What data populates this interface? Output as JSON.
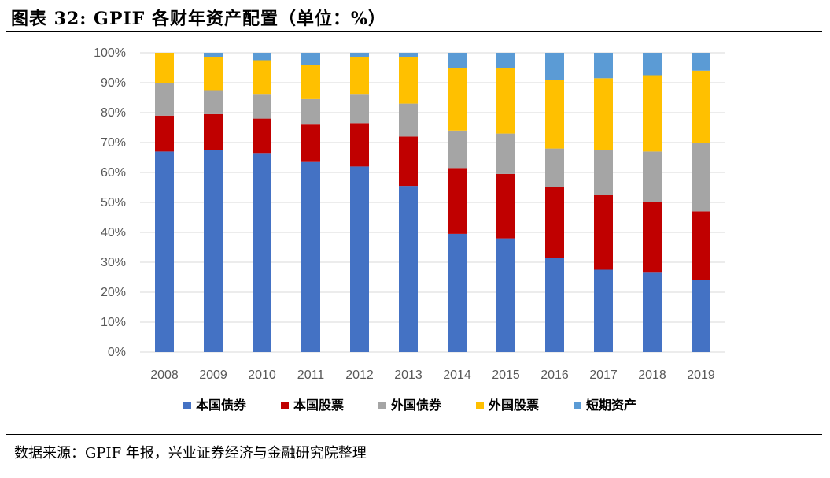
{
  "title": "图表 32: GPIF 各财年资产配置（单位：%）",
  "source": "数据来源：GPIF 年报，兴业证券经济与金融研究院整理",
  "chart_data": {
    "type": "bar",
    "stacked": true,
    "categories": [
      "2008",
      "2009",
      "2010",
      "2011",
      "2012",
      "2013",
      "2014",
      "2015",
      "2016",
      "2017",
      "2018",
      "2019"
    ],
    "y_ticks": [
      "0%",
      "10%",
      "20%",
      "30%",
      "40%",
      "50%",
      "60%",
      "70%",
      "80%",
      "90%",
      "100%"
    ],
    "ylim": [
      0,
      100
    ],
    "grid": true,
    "legend_position": "bottom",
    "series": [
      {
        "name": "本国债券",
        "color": "#4472C4",
        "values": [
          67,
          67.5,
          66.5,
          63.5,
          62,
          55.5,
          39.5,
          38,
          31.5,
          27.5,
          26.5,
          24
        ]
      },
      {
        "name": "本国股票",
        "color": "#C00000",
        "values": [
          12,
          12,
          11.5,
          12.5,
          14.5,
          16.5,
          22,
          21.5,
          23.5,
          25,
          23.5,
          23
        ]
      },
      {
        "name": "外国债券",
        "color": "#A5A5A5",
        "values": [
          11,
          8,
          8,
          8.5,
          9.5,
          11,
          12.5,
          13.5,
          13,
          15,
          17,
          23
        ]
      },
      {
        "name": "外国股票",
        "color": "#FFC000",
        "values": [
          10,
          11,
          11.5,
          11.5,
          12.5,
          15.5,
          21,
          22,
          23,
          24,
          25.5,
          24
        ]
      },
      {
        "name": "短期资产",
        "color": "#5B9BD5",
        "values": [
          0,
          1.5,
          2.5,
          4,
          1.5,
          1.5,
          5,
          5,
          9,
          8.5,
          7.5,
          6
        ]
      }
    ]
  }
}
